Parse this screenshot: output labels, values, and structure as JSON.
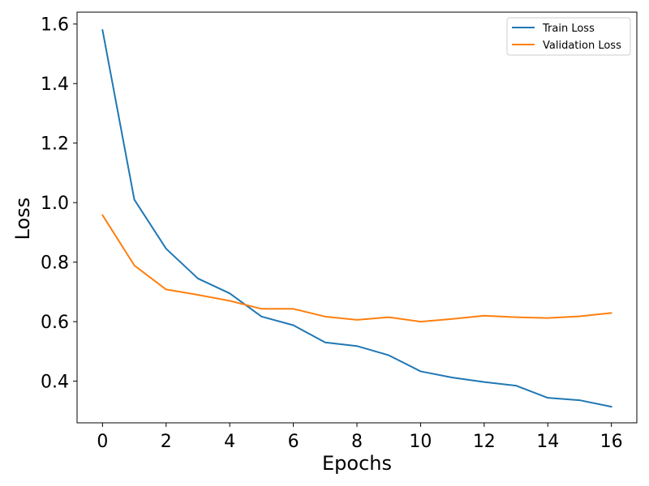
{
  "chart_data": {
    "type": "line",
    "title": "",
    "xlabel": "Epochs",
    "ylabel": "Loss",
    "xlim": [
      -0.8,
      16.8
    ],
    "ylim": [
      0.26,
      1.64
    ],
    "xticks": [
      0,
      2,
      4,
      6,
      8,
      10,
      12,
      14,
      16
    ],
    "yticks": [
      0.4,
      0.6,
      0.8,
      1.0,
      1.2,
      1.4,
      1.6
    ],
    "xtick_labels": [
      "0",
      "2",
      "4",
      "6",
      "8",
      "10",
      "12",
      "14",
      "16"
    ],
    "ytick_labels": [
      "0.4",
      "0.6",
      "0.8",
      "1.0",
      "1.2",
      "1.4",
      "1.6"
    ],
    "grid": false,
    "legend_position": "top-right",
    "x": [
      0,
      1,
      2,
      3,
      4,
      5,
      6,
      7,
      8,
      9,
      10,
      11,
      12,
      13,
      14,
      15,
      16
    ],
    "series": [
      {
        "name": "Train Loss",
        "color": "#1f77b4",
        "values": [
          1.58,
          1.01,
          0.845,
          0.745,
          0.695,
          0.617,
          0.588,
          0.53,
          0.518,
          0.487,
          0.433,
          0.412,
          0.397,
          0.385,
          0.344,
          0.336,
          0.314
        ]
      },
      {
        "name": "Validation Loss",
        "color": "#ff7f0e",
        "values": [
          0.958,
          0.789,
          0.708,
          0.69,
          0.67,
          0.643,
          0.643,
          0.617,
          0.606,
          0.615,
          0.6,
          0.609,
          0.62,
          0.615,
          0.612,
          0.618,
          0.629
        ]
      }
    ]
  }
}
